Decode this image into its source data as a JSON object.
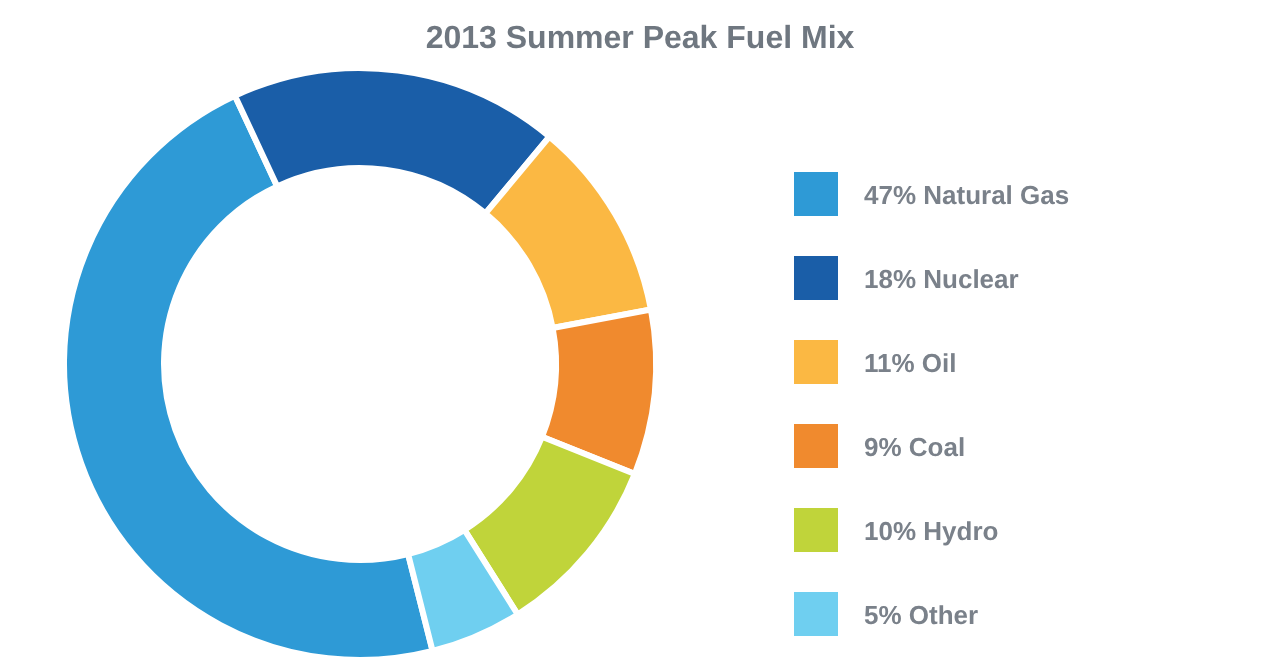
{
  "chart_data": {
    "type": "donut",
    "title": "2013 Summer Peak Fuel Mix",
    "categories": [
      "47% Natural Gas",
      "18% Nuclear",
      "11% Oil",
      "9% Coal",
      "10% Hydro",
      "5% Other"
    ],
    "values": [
      47,
      18,
      11,
      9,
      10,
      5
    ],
    "colors": [
      "#2e9ad6",
      "#1a5ea8",
      "#fbb843",
      "#f08a2e",
      "#c0d43a",
      "#6fcff0"
    ],
    "legend": "right"
  }
}
